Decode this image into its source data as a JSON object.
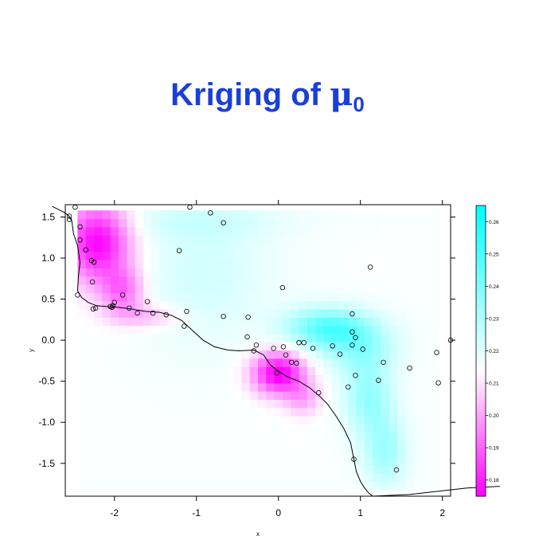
{
  "title": {
    "main": "Kriging of ",
    "symbol": "μ",
    "subscript": "0"
  },
  "chart_data": {
    "type": "heatmap",
    "title": "Kriging of μ0",
    "xlabel": "x",
    "ylabel": "y",
    "xlim": [
      -2.6,
      2.1
    ],
    "ylim": [
      -1.9,
      1.65
    ],
    "x_ticks": [
      "-2",
      "-1",
      "0",
      "1",
      "2"
    ],
    "x_tick_values": [
      -2,
      -1,
      0,
      1,
      2
    ],
    "y_ticks": [
      "-1.5",
      "-1.0",
      "-0.5",
      "0.0",
      "0.5",
      "1.0",
      "1.5"
    ],
    "y_tick_values": [
      -1.5,
      -1.0,
      -0.5,
      0.0,
      0.5,
      1.0,
      1.5
    ],
    "colorbar": {
      "min": 0.175,
      "max": 0.265,
      "tick_labels": [
        "0.26",
        "0.25",
        "0.24",
        "0.23",
        "0.22",
        "0.21",
        "0.20",
        "0.19",
        "0.18"
      ],
      "tick_values": [
        0.26,
        0.25,
        0.24,
        0.23,
        0.22,
        0.21,
        0.2,
        0.19,
        0.18
      ],
      "low_color": "#ff00ff",
      "mid_color": "#ffffff",
      "high_color": "#00ffff"
    },
    "surface": {
      "base": 0.215,
      "grid_x": [
        -2.45,
        1.95
      ],
      "grid_y": [
        -1.82,
        1.55
      ],
      "grid_step": 0.1,
      "kernels": [
        {
          "x": -2.2,
          "y": 1.2,
          "sx": 0.28,
          "sy": 0.35,
          "a": -0.04
        },
        {
          "x": -1.9,
          "y": 0.6,
          "sx": 0.18,
          "sy": 0.2,
          "a": -0.022
        },
        {
          "x": -1.6,
          "y": 0.3,
          "sx": 0.3,
          "sy": 0.1,
          "a": -0.012
        },
        {
          "x": 0.0,
          "y": -0.4,
          "sx": 0.22,
          "sy": 0.18,
          "a": -0.042
        },
        {
          "x": 0.3,
          "y": -0.7,
          "sx": 0.15,
          "sy": 0.15,
          "a": -0.014
        },
        {
          "x": 0.6,
          "y": 0.15,
          "sx": 0.35,
          "sy": 0.17,
          "a": 0.032
        },
        {
          "x": 1.0,
          "y": -0.1,
          "sx": 0.3,
          "sy": 0.22,
          "a": 0.018
        },
        {
          "x": 1.1,
          "y": -0.7,
          "sx": 0.2,
          "sy": 0.3,
          "a": 0.02
        },
        {
          "x": 1.3,
          "y": -1.35,
          "sx": 0.18,
          "sy": 0.3,
          "a": 0.018
        },
        {
          "x": -0.9,
          "y": 0.85,
          "sx": 0.55,
          "sy": 0.6,
          "a": 0.008
        },
        {
          "x": -1.0,
          "y": 1.45,
          "sx": 0.8,
          "sy": 0.15,
          "a": 0.006
        }
      ]
    },
    "points": [
      [
        -2.48,
        1.62
      ],
      [
        -1.08,
        1.62
      ],
      [
        -2.55,
        1.51
      ],
      [
        -2.55,
        1.47
      ],
      [
        -0.83,
        1.55
      ],
      [
        -0.67,
        1.43
      ],
      [
        -2.42,
        1.38
      ],
      [
        -2.42,
        1.22
      ],
      [
        -2.35,
        1.1
      ],
      [
        -2.28,
        0.97
      ],
      [
        -2.25,
        0.95
      ],
      [
        -1.21,
        1.09
      ],
      [
        -2.27,
        0.71
      ],
      [
        1.12,
        0.89
      ],
      [
        0.05,
        0.64
      ],
      [
        -2.45,
        0.55
      ],
      [
        -1.9,
        0.55
      ],
      [
        -1.6,
        0.47
      ],
      [
        -2.0,
        0.46
      ],
      [
        -2.05,
        0.41
      ],
      [
        -2.03,
        0.4
      ],
      [
        -2.02,
        0.42
      ],
      [
        -2.26,
        0.38
      ],
      [
        -2.23,
        0.39
      ],
      [
        -1.82,
        0.39
      ],
      [
        -1.72,
        0.33
      ],
      [
        -1.53,
        0.33
      ],
      [
        -1.37,
        0.31
      ],
      [
        -1.12,
        0.35
      ],
      [
        -1.15,
        0.17
      ],
      [
        -0.67,
        0.29
      ],
      [
        -0.37,
        0.28
      ],
      [
        0.9,
        0.32
      ],
      [
        -0.38,
        0.04
      ],
      [
        -0.27,
        -0.06
      ],
      [
        -0.3,
        -0.13
      ],
      [
        -0.06,
        -0.1
      ],
      [
        0.06,
        -0.08
      ],
      [
        0.25,
        -0.03
      ],
      [
        0.31,
        -0.03
      ],
      [
        0.42,
        -0.1
      ],
      [
        0.66,
        -0.07
      ],
      [
        0.75,
        -0.17
      ],
      [
        0.9,
        0.1
      ],
      [
        0.94,
        0.03
      ],
      [
        0.9,
        -0.06
      ],
      [
        1.03,
        -0.11
      ],
      [
        0.09,
        -0.18
      ],
      [
        0.16,
        -0.27
      ],
      [
        0.22,
        -0.28
      ],
      [
        -0.02,
        -0.4
      ],
      [
        0.94,
        -0.43
      ],
      [
        1.28,
        -0.27
      ],
      [
        1.6,
        -0.34
      ],
      [
        1.93,
        -0.15
      ],
      [
        2.1,
        0.0
      ],
      [
        1.22,
        -0.49
      ],
      [
        1.95,
        -0.52
      ],
      [
        0.85,
        -0.57
      ],
      [
        0.49,
        -0.64
      ],
      [
        0.92,
        -1.45
      ],
      [
        1.44,
        -1.58
      ]
    ],
    "coastline": [
      [
        -2.76,
        1.63
      ],
      [
        -2.7,
        1.6
      ],
      [
        -2.62,
        1.56
      ],
      [
        -2.56,
        1.52
      ],
      [
        -2.52,
        1.45
      ],
      [
        -2.5,
        1.3
      ],
      [
        -2.45,
        1.15
      ],
      [
        -2.42,
        0.95
      ],
      [
        -2.44,
        0.78
      ],
      [
        -2.45,
        0.6
      ],
      [
        -2.4,
        0.52
      ],
      [
        -2.32,
        0.46
      ],
      [
        -2.22,
        0.42
      ],
      [
        -2.1,
        0.41
      ],
      [
        -1.95,
        0.4
      ],
      [
        -1.8,
        0.38
      ],
      [
        -1.62,
        0.35
      ],
      [
        -1.45,
        0.34
      ],
      [
        -1.3,
        0.3
      ],
      [
        -1.18,
        0.24
      ],
      [
        -1.05,
        0.12
      ],
      [
        -0.92,
        0.0
      ],
      [
        -0.78,
        -0.08
      ],
      [
        -0.62,
        -0.12
      ],
      [
        -0.48,
        -0.13
      ],
      [
        -0.3,
        -0.12
      ],
      [
        -0.18,
        -0.18
      ],
      [
        -0.1,
        -0.3
      ],
      [
        0.0,
        -0.38
      ],
      [
        0.12,
        -0.45
      ],
      [
        0.25,
        -0.5
      ],
      [
        0.38,
        -0.58
      ],
      [
        0.5,
        -0.68
      ],
      [
        0.6,
        -0.78
      ],
      [
        0.7,
        -0.92
      ],
      [
        0.8,
        -1.08
      ],
      [
        0.88,
        -1.25
      ],
      [
        0.92,
        -1.45
      ],
      [
        0.95,
        -1.6
      ],
      [
        1.0,
        -1.72
      ],
      [
        1.05,
        -1.8
      ],
      [
        1.1,
        -1.86
      ],
      [
        1.15,
        -1.9
      ],
      [
        1.6,
        -1.88
      ],
      [
        2.3,
        -1.8
      ],
      [
        2.7,
        -1.78
      ]
    ]
  }
}
